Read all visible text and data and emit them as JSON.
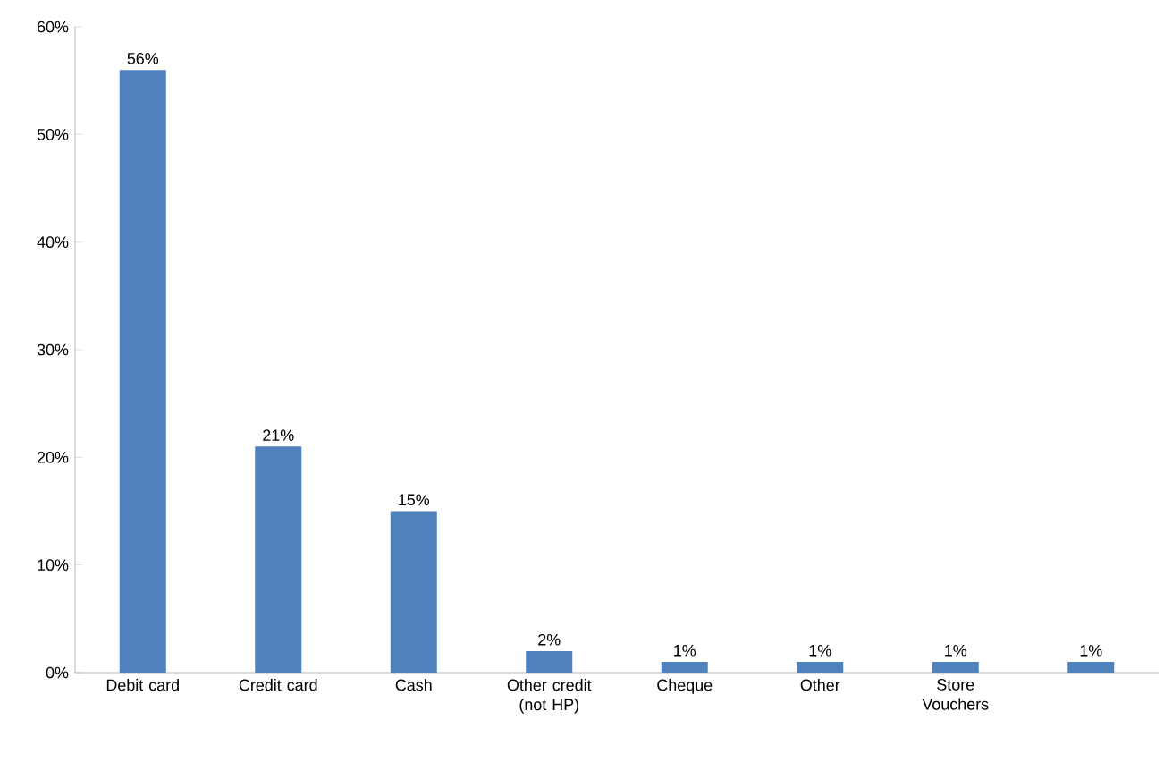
{
  "chart_data": {
    "type": "bar",
    "categories": [
      "Debit card",
      "Credit card",
      "Cash",
      "Other credit (not HP)",
      "Cheque",
      "Other",
      "Store Vouchers",
      null
    ],
    "values": [
      56,
      21,
      15,
      2,
      1,
      1,
      1,
      1
    ],
    "value_labels": [
      "56%",
      "21%",
      "15%",
      "2%",
      "1%",
      "1%",
      "1%",
      "1%"
    ],
    "color": "#4f81bd",
    "ylim": [
      0,
      60
    ],
    "yticks": [
      {
        "value": 0,
        "label": "0%"
      },
      {
        "value": 10,
        "label": "10%"
      },
      {
        "value": 20,
        "label": "20%"
      },
      {
        "value": 30,
        "label": "30%"
      },
      {
        "value": 40,
        "label": "40%"
      },
      {
        "value": 50,
        "label": "50%"
      },
      {
        "value": 60,
        "label": "60%"
      }
    ],
    "grid": false
  }
}
